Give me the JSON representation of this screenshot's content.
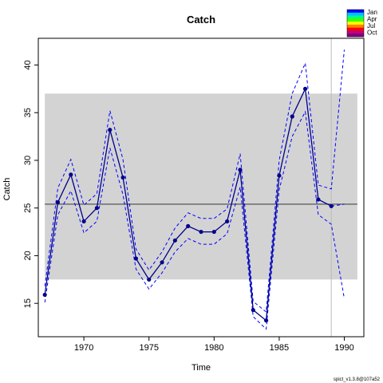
{
  "chart_data": {
    "type": "line",
    "title": "Catch",
    "xlabel": "Time",
    "ylabel": "Catch",
    "xlim": [
      1966.5,
      1991.5
    ],
    "ylim": [
      11.5,
      42.8
    ],
    "x_ticks": [
      "1970",
      "1975",
      "1980",
      "1985",
      "1990"
    ],
    "x_tick_values": [
      1970,
      1975,
      1980,
      1985,
      1990
    ],
    "y_ticks": [
      "15",
      "20",
      "25",
      "30",
      "35",
      "40"
    ],
    "y_tick_values": [
      15,
      20,
      25,
      30,
      35,
      40
    ],
    "mean_line": 25.4,
    "band": {
      "x": [
        1967,
        1991
      ],
      "y": [
        17.5,
        37.0
      ],
      "color": "#d3d3d3"
    },
    "vline_x": 1989,
    "series": [
      {
        "name": "estimate",
        "x": [
          1967,
          1968,
          1969,
          1970,
          1971,
          1972,
          1973,
          1974,
          1975,
          1976,
          1977,
          1978,
          1979,
          1980,
          1981,
          1982,
          1983,
          1984,
          1985,
          1986,
          1987,
          1988,
          1989
        ],
        "values": [
          15.9,
          25.6,
          28.5,
          23.6,
          25.0,
          33.2,
          28.2,
          19.7,
          17.5,
          19.3,
          21.6,
          23.1,
          22.5,
          22.5,
          23.6,
          29.0,
          14.3,
          13.2,
          28.4,
          34.6,
          37.5,
          25.9,
          25.2
        ]
      },
      {
        "name": "upper",
        "x": [
          1967,
          1968,
          1969,
          1970,
          1971,
          1972,
          1973,
          1974,
          1975,
          1976,
          1977,
          1978,
          1979,
          1980,
          1981,
          1982,
          1983,
          1984,
          1985,
          1986,
          1987,
          1988,
          1989,
          1990
        ],
        "values": [
          16.8,
          27.1,
          30.1,
          25.3,
          26.5,
          35.2,
          30.1,
          20.7,
          18.5,
          20.4,
          22.9,
          24.5,
          23.9,
          23.9,
          24.9,
          30.7,
          15.2,
          14.1,
          30.0,
          37.0,
          40.2,
          27.4,
          27.0,
          41.6
        ]
      },
      {
        "name": "lower",
        "x": [
          1967,
          1968,
          1969,
          1970,
          1971,
          1972,
          1973,
          1974,
          1975,
          1976,
          1977,
          1978,
          1979,
          1980,
          1981,
          1982,
          1983,
          1984,
          1985,
          1986,
          1987,
          1988,
          1989,
          1990
        ],
        "values": [
          15.1,
          24.3,
          26.8,
          22.4,
          23.6,
          31.3,
          26.4,
          18.6,
          16.5,
          18.2,
          20.4,
          21.8,
          21.2,
          21.2,
          22.3,
          27.2,
          13.6,
          12.3,
          26.9,
          32.5,
          35.1,
          24.3,
          23.3,
          15.5
        ]
      },
      {
        "name": "prediction",
        "x": [
          1989,
          1990
        ],
        "values": [
          25.2,
          25.4
        ]
      }
    ],
    "legend": {
      "position": "top-right",
      "entries": [
        "Jan",
        "Apr",
        "Jul",
        "Oct"
      ],
      "colors": [
        "#0000ff",
        "#00bfff",
        "#00ff80",
        "#40ff00",
        "#ffff00",
        "#ff8000",
        "#ff0000",
        "#c00080",
        "#800080"
      ]
    },
    "footer": "spict_v1.3.8@107a52",
    "colors": {
      "line": "#00008b",
      "ci": "#0000ff",
      "mean": "#555555",
      "vline": "#bbbbbb"
    }
  }
}
